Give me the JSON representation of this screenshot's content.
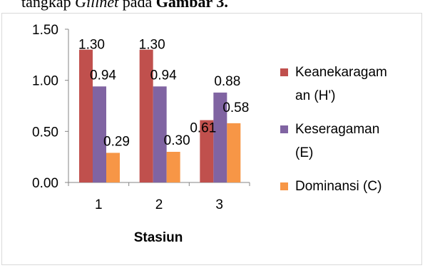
{
  "caption": {
    "prefix": "tangkap ",
    "italic": "Gillnet",
    "middle": " pada ",
    "bold": "Gambar 3."
  },
  "chart_data": {
    "type": "bar",
    "categories": [
      "1",
      "2",
      "3"
    ],
    "xlabel": "Stasiun",
    "ylabel": "",
    "ylim": [
      0,
      1.5
    ],
    "yticks": [
      "0.00",
      "0.50",
      "1.00",
      "1.50"
    ],
    "grid": false,
    "legend_position": "right",
    "series": [
      {
        "name": "Keanekaragaman (H')",
        "legend_lines": [
          "Keanekaragam",
          "an (H')"
        ],
        "color": "#c0504d",
        "values": [
          1.3,
          1.3,
          0.61
        ],
        "labels": [
          "1.30",
          "1.30",
          "0.61"
        ]
      },
      {
        "name": "Keseragaman (E)",
        "legend_lines": [
          "Keseragaman",
          "(E)"
        ],
        "color": "#8064a2",
        "values": [
          0.94,
          0.94,
          0.88
        ],
        "labels": [
          "0.94",
          "0.94",
          "0.88"
        ]
      },
      {
        "name": "Dominansi (C)",
        "legend_lines": [
          "Dominansi (C)"
        ],
        "color": "#f79646",
        "values": [
          0.29,
          0.3,
          0.58
        ],
        "labels": [
          "0.29",
          "0.30",
          "0.58"
        ]
      }
    ]
  }
}
